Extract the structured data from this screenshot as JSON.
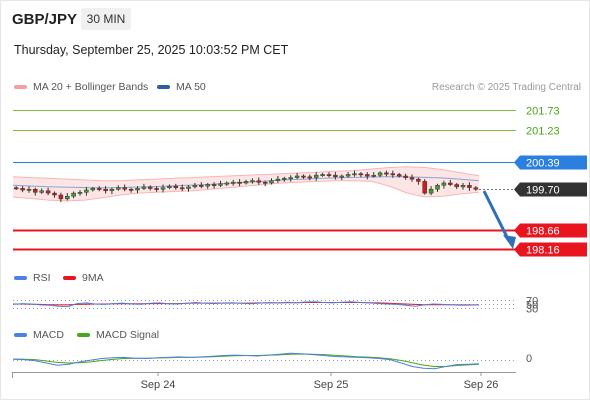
{
  "header": {
    "symbol": "GBP/JPY",
    "timeframe": "30 MIN",
    "timestamp": "Thursday, September 25, 2025 10:03:52 PM CET"
  },
  "legend": {
    "bollinger": "MA 20 + Bollinger Bands",
    "ma50": "MA 50",
    "credit": "Research © 2025 Trading Central",
    "colors": {
      "bollinger": "#f4a0a0",
      "ma50": "#2f5fa0"
    }
  },
  "chart_data": [
    {
      "type": "candlestick",
      "levels": [
        {
          "value": "201.73",
          "kind": "resistance",
          "color": "#7fbf3f"
        },
        {
          "value": "201.23",
          "kind": "resistance",
          "color": "#7fbf3f"
        },
        {
          "value": "200.39",
          "kind": "pivot",
          "color": "#2a7fe0"
        },
        {
          "value": "199.70",
          "kind": "last-price",
          "color": "#333333"
        },
        {
          "value": "198.66",
          "kind": "target",
          "color": "#e8141e"
        },
        {
          "value": "198.16",
          "kind": "target",
          "color": "#e8141e"
        }
      ],
      "price_range": [
        197.8,
        202.1
      ],
      "close_series": [
        199.72,
        199.68,
        199.7,
        199.62,
        199.66,
        199.6,
        199.55,
        199.45,
        199.52,
        199.6,
        199.62,
        199.68,
        199.72,
        199.7,
        199.66,
        199.7,
        199.74,
        199.7,
        199.68,
        199.72,
        199.76,
        199.72,
        199.7,
        199.74,
        199.78,
        199.74,
        199.72,
        199.76,
        199.8,
        199.78,
        199.82,
        199.8,
        199.84,
        199.86,
        199.88,
        199.86,
        199.9,
        199.92,
        199.88,
        199.86,
        199.92,
        199.96,
        199.98,
        200.0,
        200.04,
        200.02,
        200.0,
        200.06,
        200.08,
        200.06,
        200.02,
        200.04,
        200.08,
        200.1,
        200.08,
        200.04,
        200.06,
        200.12,
        200.1,
        200.08,
        200.04,
        200.0,
        199.96,
        199.9,
        199.6,
        199.7,
        199.8,
        199.86,
        199.82,
        199.76,
        199.8,
        199.74,
        199.7
      ],
      "bollinger_upper": [
        200.02,
        200.0,
        199.98,
        199.96,
        199.94,
        199.92,
        199.92,
        199.94,
        199.96,
        199.98,
        200.0,
        200.02,
        200.04,
        200.06,
        200.08,
        200.1,
        200.12,
        200.14,
        200.16,
        200.18,
        200.22,
        200.26,
        200.28,
        200.26,
        200.2,
        200.12,
        200.05
      ],
      "bollinger_lower": [
        199.5,
        199.46,
        199.42,
        199.4,
        199.42,
        199.48,
        199.55,
        199.6,
        199.62,
        199.64,
        199.66,
        199.7,
        199.74,
        199.78,
        199.82,
        199.86,
        199.88,
        199.9,
        199.92,
        199.92,
        199.9,
        199.78,
        199.6,
        199.5,
        199.52,
        199.58,
        199.62
      ],
      "ma50": [
        199.8,
        199.78,
        199.76,
        199.75,
        199.74,
        199.74,
        199.75,
        199.76,
        199.78,
        199.8,
        199.82,
        199.85,
        199.88,
        199.91,
        199.94,
        199.96,
        199.98,
        200.0,
        200.01,
        200.02,
        200.02,
        200.01,
        199.99,
        199.96,
        199.92
      ]
    },
    {
      "type": "line",
      "panel": "RSI",
      "legend": [
        {
          "name": "RSI",
          "color": "#4d7fe6"
        },
        {
          "name": "9MA",
          "color": "#e8141e"
        }
      ],
      "levels": [
        "70",
        "50",
        "30"
      ],
      "ylim": [
        0,
        100
      ],
      "series": [
        {
          "name": "RSI",
          "values": [
            48,
            52,
            50,
            46,
            44,
            40,
            38,
            52,
            55,
            50,
            48,
            52,
            54,
            50,
            49,
            53,
            55,
            51,
            50,
            53,
            57,
            54,
            52,
            55,
            56,
            53,
            51,
            54,
            57,
            55,
            58,
            56,
            59,
            60,
            57,
            55,
            58,
            60,
            57,
            55,
            52,
            50,
            48,
            44,
            40,
            46,
            50,
            48,
            46,
            44,
            45,
            47
          ]
        },
        {
          "name": "9MA",
          "values": [
            50,
            50,
            49,
            48,
            47,
            46,
            46,
            48,
            49,
            50,
            50,
            51,
            51,
            51,
            51,
            52,
            52,
            52,
            52,
            53,
            54,
            54,
            54,
            54,
            54,
            54,
            54,
            55,
            55,
            55,
            56,
            56,
            57,
            57,
            57,
            57,
            57,
            57,
            57,
            56,
            55,
            54,
            52,
            50,
            48,
            47,
            47,
            47,
            47,
            46,
            46,
            46
          ]
        }
      ]
    },
    {
      "type": "line",
      "panel": "MACD",
      "legend": [
        {
          "name": "MACD",
          "color": "#4d7fe6"
        },
        {
          "name": "MACD Signal",
          "color": "#4aa61a"
        }
      ],
      "levels": [
        "0"
      ],
      "ylim": [
        -0.5,
        0.6
      ],
      "series": [
        {
          "name": "MACD",
          "values": [
            0.02,
            0.0,
            -0.05,
            -0.15,
            -0.25,
            -0.2,
            -0.1,
            -0.02,
            0.05,
            0.08,
            0.1,
            0.06,
            0.05,
            0.08,
            0.1,
            0.12,
            0.1,
            0.12,
            0.15,
            0.18,
            0.2,
            0.18,
            0.16,
            0.2,
            0.24,
            0.28,
            0.26,
            0.22,
            0.18,
            0.14,
            0.12,
            0.1,
            0.08,
            0.05,
            0.0,
            -0.15,
            -0.3,
            -0.38,
            -0.4,
            -0.3,
            -0.22,
            -0.2,
            -0.18
          ]
        },
        {
          "name": "MACD Signal",
          "values": [
            0.03,
            0.02,
            0.0,
            -0.06,
            -0.12,
            -0.15,
            -0.14,
            -0.1,
            -0.04,
            0.01,
            0.05,
            0.06,
            0.06,
            0.07,
            0.08,
            0.1,
            0.1,
            0.11,
            0.13,
            0.15,
            0.17,
            0.18,
            0.18,
            0.19,
            0.21,
            0.24,
            0.25,
            0.24,
            0.22,
            0.19,
            0.16,
            0.13,
            0.11,
            0.08,
            0.04,
            -0.04,
            -0.14,
            -0.24,
            -0.3,
            -0.3,
            -0.26,
            -0.23,
            -0.2
          ]
        }
      ]
    }
  ],
  "x_axis": {
    "ticks": [
      "Sep 24",
      "Sep 25",
      "Sep 26"
    ]
  }
}
